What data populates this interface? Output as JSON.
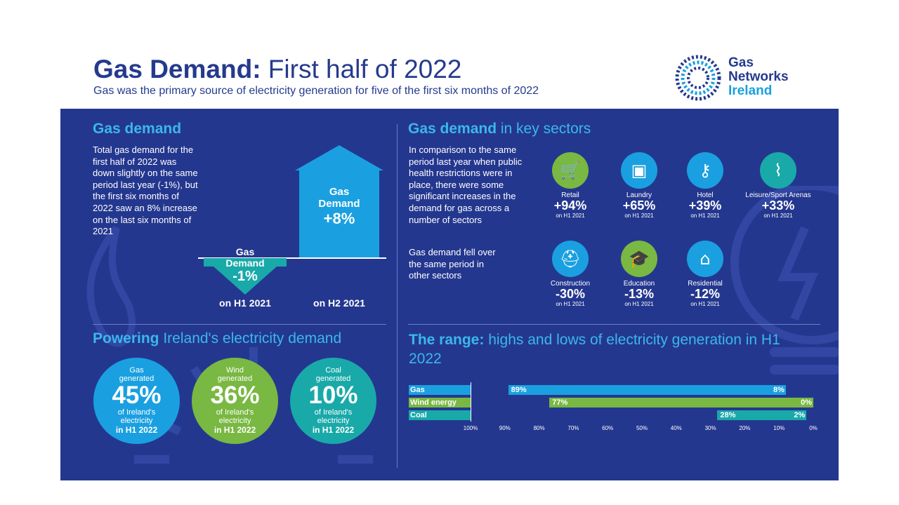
{
  "header": {
    "title_bold": "Gas Demand:",
    "title_rest": " First half of 2022",
    "subtitle": "Gas was the primary source of electricity generation for five of the first six months of 2022"
  },
  "logo": {
    "line1": "Gas",
    "line2": "Networks",
    "line3": "Ireland"
  },
  "gas_demand": {
    "heading": "Gas demand",
    "body": "Total gas demand for the first half of 2022 was down slightly on the same period last year (-1%), but the first six months of 2022 saw an 8% increase on the last six months of 2021",
    "down_arrow": {
      "line1": "Gas",
      "line2": "Demand",
      "value": "-1%",
      "caption": "on H1 2021"
    },
    "up_arrow": {
      "line1": "Gas",
      "line2": "Demand",
      "value": "+8%",
      "caption": "on H2 2021"
    }
  },
  "sectors": {
    "heading_bold": "Gas demand",
    "heading_rest": " in key sectors",
    "intro_increase": "In comparison to the same period last year when public health restrictions were in place, there were some significant increases in the demand for gas across a number of sectors",
    "intro_decrease": "Gas demand fell over the same period in other sectors",
    "increase": [
      {
        "name": "Retail",
        "value": "+94%",
        "sub": "on H1 2021",
        "color": "#79b842",
        "icon": "cart-icon"
      },
      {
        "name": "Laundry",
        "value": "+65%",
        "sub": "on H1 2021",
        "color": "#1aa0e0",
        "icon": "washing-machine-icon"
      },
      {
        "name": "Hotel",
        "value": "+39%",
        "sub": "on H1 2021",
        "color": "#1aa0e0",
        "icon": "key-icon"
      },
      {
        "name": "Leisure/Sport Arenas",
        "value": "+33%",
        "sub": "on H1 2021",
        "color": "#19a9a9",
        "icon": "dumbbell-icon"
      }
    ],
    "decrease": [
      {
        "name": "Construction",
        "value": "-30%",
        "sub": "on H1 2021",
        "color": "#1aa0e0",
        "icon": "hard-hat-icon"
      },
      {
        "name": "Education",
        "value": "-13%",
        "sub": "on H1 2021",
        "color": "#79b842",
        "icon": "graduation-cap-icon"
      },
      {
        "name": "Residential",
        "value": "-12%",
        "sub": "on H1 2021",
        "color": "#1aa0e0",
        "icon": "house-icon"
      }
    ]
  },
  "powering": {
    "heading_bold": "Powering",
    "heading_rest": " Ireland's electricity demand",
    "circles": [
      {
        "line1": "Gas",
        "line2": "generated",
        "pct": "45%",
        "line3": "of Ireland's",
        "line4": "electricity",
        "line5": "in H1 2022",
        "color": "#1aa0e0"
      },
      {
        "line1": "Wind",
        "line2": "generated",
        "pct": "36%",
        "line3": "of Ireland's",
        "line4": "electricity",
        "line5": "in H1 2022",
        "color": "#79b842"
      },
      {
        "line1": "Coal",
        "line2": "generated",
        "pct": "10%",
        "line3": "of Ireland's",
        "line4": "electricity",
        "line5": "in H1 2022",
        "color": "#19a9a9"
      }
    ]
  },
  "range": {
    "heading_bold": "The range:",
    "heading_rest": " highs and lows of electricity generation in H1 2022",
    "ticks": [
      "100%",
      "90%",
      "80%",
      "70%",
      "60%",
      "50%",
      "40%",
      "30%",
      "20%",
      "10%",
      "0%"
    ]
  },
  "chart_data": {
    "type": "bar",
    "orientation": "horizontal-range",
    "categories": [
      "Gas",
      "Wind energy",
      "Coal"
    ],
    "series": [
      {
        "name": "Gas",
        "high": 89,
        "low": 8,
        "color": "#1aa0e0"
      },
      {
        "name": "Wind energy",
        "high": 77,
        "low": 0,
        "color": "#79b842"
      },
      {
        "name": "Coal",
        "high": 28,
        "low": 2,
        "color": "#19a9a9"
      }
    ],
    "high_labels": [
      "89%",
      "77%",
      "28%"
    ],
    "low_labels": [
      "8%",
      "0%",
      "2%"
    ],
    "xlim": [
      100,
      0
    ]
  }
}
